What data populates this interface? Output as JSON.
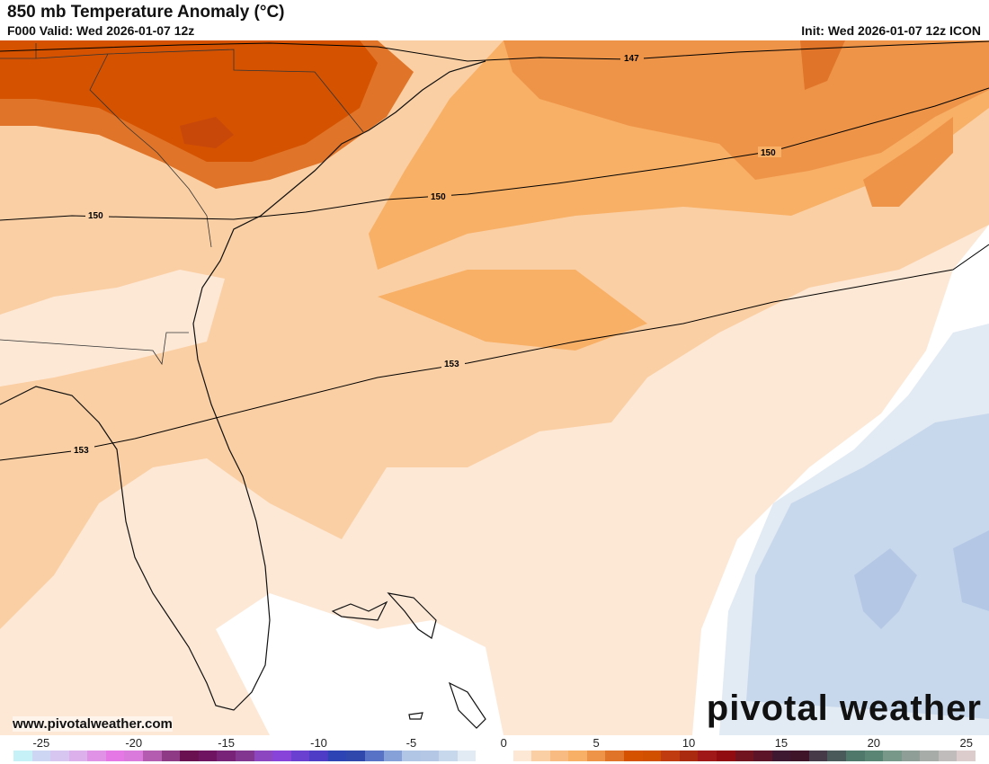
{
  "header": {
    "title": "850 mb Temperature Anomaly (°C)",
    "valid": "F000 Valid: Wed 2026-01-07 12z",
    "init": "Init: Wed 2026-01-07 12z ICON"
  },
  "footer": {
    "site": "www.pivotalweather.com",
    "logo": "pivotal weather"
  },
  "contours": {
    "labels": [
      "147",
      "150",
      "150",
      "150",
      "153",
      "153"
    ]
  },
  "colorbar": {
    "min": -26,
    "max": 26,
    "ticks": [
      "-25",
      "-20",
      "-15",
      "-10",
      "-5",
      "0",
      "5",
      "10",
      "15",
      "20",
      "25"
    ],
    "tick_values": [
      -25,
      -20,
      -15,
      -10,
      -5,
      0,
      5,
      10,
      15,
      20,
      25
    ],
    "colors": [
      "#c6f1f7",
      "#cdd6f3",
      "#d7c6ef",
      "#dcb0ea",
      "#e092e6",
      "#e678e6",
      "#da7add",
      "#b45cb0",
      "#8e3a85",
      "#6a1050",
      "#6e1460",
      "#782278",
      "#823690",
      "#8c46c0",
      "#8844d8",
      "#6a40d0",
      "#4e3cc6",
      "#2c44b4",
      "#3048ac",
      "#5872c6",
      "#86a0d8",
      "#b0c6e4",
      "#b4c8e6",
      "#c8d8ec",
      "#e2eaf4",
      "#ffffff",
      "#ffffff",
      "#fde8d6",
      "#fbcfa4",
      "#f8bc82",
      "#f8b066",
      "#ee9448",
      "#e07428",
      "#d45200",
      "#d05000",
      "#c03c10",
      "#aa2a10",
      "#a01818",
      "#900c10",
      "#721420",
      "#5c1428",
      "#3e1830",
      "#401428",
      "#463a48",
      "#4a5a5a",
      "#50786a",
      "#5a8474",
      "#78988a",
      "#909e98",
      "#a8aca8",
      "#c0bcbc",
      "#dccccc"
    ]
  }
}
